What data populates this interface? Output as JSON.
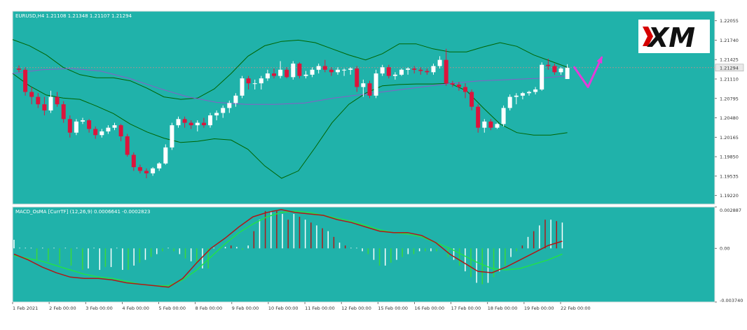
{
  "main_panel": {
    "label": "EURUSD,H4  1.21108 1.21348 1.21107 1.21294",
    "current_price": "1.21294",
    "price_ticks": [
      "1.22055",
      "1.21740",
      "1.21425",
      "1.21110",
      "1.20795",
      "1.20480",
      "1.20165",
      "1.19850",
      "1.19535",
      "1.19220"
    ]
  },
  "macd_panel": {
    "label": "MACD_OsMA [CurrTF] (12,26,9) 0.0006641 -0.0002823",
    "ticks": [
      "0.002887",
      "0.00",
      "-0.003740"
    ]
  },
  "time_axis": {
    "labels": [
      "1 Feb 2021",
      "2 Feb 00:00",
      "3 Feb 00:00",
      "4 Feb 00:00",
      "5 Feb 00:00",
      "8 Feb 00:00",
      "9 Feb 00:00",
      "10 Feb 00:00",
      "11 Feb 00:00",
      "12 Feb 00:00",
      "15 Feb 00:00",
      "16 Feb 00:00",
      "17 Feb 00:00",
      "18 Feb 00:00",
      "19 Feb 00:00",
      "22 Feb 00:00"
    ]
  },
  "logo": {
    "text": "XM"
  },
  "colors": {
    "background": "#20b2aa",
    "bull_candle": "#ffffff",
    "bear_candle": "#dc143c",
    "bands": "#006400",
    "moving_average": "#8a5cc8",
    "macd_line": "#b01818",
    "signal_line": "#22e04a",
    "hist_red": "#b01818",
    "hist_white": "#ffffff",
    "hist_green": "#3ad83a",
    "arrow": "#e43bd8"
  },
  "chart_data": {
    "type": "candlestick",
    "symbol": "EURUSD",
    "timeframe": "H4",
    "title": "EURUSD,H4  1.21108 1.21348 1.21107 1.21294",
    "ylim": [
      1.1908,
      1.2221
    ],
    "candles": [
      {
        "o": 1.2128,
        "h": 1.2133,
        "l": 1.2122,
        "c": 1.2126
      },
      {
        "o": 1.2126,
        "h": 1.213,
        "l": 1.2084,
        "c": 1.209
      },
      {
        "o": 1.209,
        "h": 1.2098,
        "l": 1.207,
        "c": 1.2082
      },
      {
        "o": 1.2082,
        "h": 1.2088,
        "l": 1.2064,
        "c": 1.207
      },
      {
        "o": 1.207,
        "h": 1.2082,
        "l": 1.2052,
        "c": 1.206
      },
      {
        "o": 1.206,
        "h": 1.2092,
        "l": 1.2056,
        "c": 1.2082
      },
      {
        "o": 1.2082,
        "h": 1.209,
        "l": 1.2066,
        "c": 1.207
      },
      {
        "o": 1.207,
        "h": 1.2075,
        "l": 1.204,
        "c": 1.2046
      },
      {
        "o": 1.2046,
        "h": 1.2052,
        "l": 1.2016,
        "c": 1.2024
      },
      {
        "o": 1.2024,
        "h": 1.2046,
        "l": 1.202,
        "c": 1.2042
      },
      {
        "o": 1.2042,
        "h": 1.2048,
        "l": 1.2038,
        "c": 1.2044
      },
      {
        "o": 1.2044,
        "h": 1.2046,
        "l": 1.2024,
        "c": 1.203
      },
      {
        "o": 1.203,
        "h": 1.2034,
        "l": 1.2014,
        "c": 1.202
      },
      {
        "o": 1.202,
        "h": 1.203,
        "l": 1.2016,
        "c": 1.2026
      },
      {
        "o": 1.2026,
        "h": 1.2036,
        "l": 1.2022,
        "c": 1.2032
      },
      {
        "o": 1.2032,
        "h": 1.204,
        "l": 1.2028,
        "c": 1.2036
      },
      {
        "o": 1.2036,
        "h": 1.2038,
        "l": 1.201,
        "c": 1.2018
      },
      {
        "o": 1.2018,
        "h": 1.2022,
        "l": 1.1985,
        "c": 1.1988
      },
      {
        "o": 1.1988,
        "h": 1.1992,
        "l": 1.1962,
        "c": 1.1968
      },
      {
        "o": 1.1968,
        "h": 1.1972,
        "l": 1.1958,
        "c": 1.1962
      },
      {
        "o": 1.1962,
        "h": 1.1966,
        "l": 1.195,
        "c": 1.1958
      },
      {
        "o": 1.1958,
        "h": 1.1968,
        "l": 1.1954,
        "c": 1.1966
      },
      {
        "o": 1.1966,
        "h": 1.1976,
        "l": 1.1962,
        "c": 1.1974
      },
      {
        "o": 1.1974,
        "h": 1.2005,
        "l": 1.1972,
        "c": 1.2
      },
      {
        "o": 1.2,
        "h": 1.204,
        "l": 1.1996,
        "c": 1.2036
      },
      {
        "o": 1.2036,
        "h": 1.205,
        "l": 1.2032,
        "c": 1.2046
      },
      {
        "o": 1.2046,
        "h": 1.205,
        "l": 1.2032,
        "c": 1.204
      },
      {
        "o": 1.204,
        "h": 1.2044,
        "l": 1.203,
        "c": 1.2036
      },
      {
        "o": 1.2036,
        "h": 1.2044,
        "l": 1.2026,
        "c": 1.204
      },
      {
        "o": 1.204,
        "h": 1.2048,
        "l": 1.2032,
        "c": 1.2036
      },
      {
        "o": 1.2036,
        "h": 1.2056,
        "l": 1.2032,
        "c": 1.2052
      },
      {
        "o": 1.2052,
        "h": 1.206,
        "l": 1.2044,
        "c": 1.2056
      },
      {
        "o": 1.2056,
        "h": 1.2068,
        "l": 1.2048,
        "c": 1.2064
      },
      {
        "o": 1.2064,
        "h": 1.2076,
        "l": 1.2056,
        "c": 1.2072
      },
      {
        "o": 1.2072,
        "h": 1.2088,
        "l": 1.2066,
        "c": 1.2084
      },
      {
        "o": 1.2084,
        "h": 1.2116,
        "l": 1.208,
        "c": 1.2112
      },
      {
        "o": 1.2112,
        "h": 1.2116,
        "l": 1.2094,
        "c": 1.2104
      },
      {
        "o": 1.2104,
        "h": 1.211,
        "l": 1.2094,
        "c": 1.2104
      },
      {
        "o": 1.2104,
        "h": 1.2116,
        "l": 1.2094,
        "c": 1.2112
      },
      {
        "o": 1.2112,
        "h": 1.2126,
        "l": 1.2108,
        "c": 1.212
      },
      {
        "o": 1.212,
        "h": 1.2128,
        "l": 1.2112,
        "c": 1.2116
      },
      {
        "o": 1.2116,
        "h": 1.214,
        "l": 1.2112,
        "c": 1.2126
      },
      {
        "o": 1.2126,
        "h": 1.213,
        "l": 1.2112,
        "c": 1.2114
      },
      {
        "o": 1.2114,
        "h": 1.214,
        "l": 1.211,
        "c": 1.2136
      },
      {
        "o": 1.2136,
        "h": 1.2138,
        "l": 1.2112,
        "c": 1.2116
      },
      {
        "o": 1.2116,
        "h": 1.2124,
        "l": 1.2112,
        "c": 1.2118
      },
      {
        "o": 1.2118,
        "h": 1.213,
        "l": 1.2114,
        "c": 1.2126
      },
      {
        "o": 1.2126,
        "h": 1.2136,
        "l": 1.212,
        "c": 1.2132
      },
      {
        "o": 1.2132,
        "h": 1.2142,
        "l": 1.2122,
        "c": 1.2126
      },
      {
        "o": 1.2126,
        "h": 1.213,
        "l": 1.2116,
        "c": 1.2122
      },
      {
        "o": 1.2122,
        "h": 1.213,
        "l": 1.2118,
        "c": 1.2126
      },
      {
        "o": 1.2126,
        "h": 1.2128,
        "l": 1.2116,
        "c": 1.2126
      },
      {
        "o": 1.2126,
        "h": 1.213,
        "l": 1.2118,
        "c": 1.2128
      },
      {
        "o": 1.2128,
        "h": 1.2132,
        "l": 1.209,
        "c": 1.2098
      },
      {
        "o": 1.2098,
        "h": 1.211,
        "l": 1.2082,
        "c": 1.2104
      },
      {
        "o": 1.2104,
        "h": 1.2108,
        "l": 1.208,
        "c": 1.2084
      },
      {
        "o": 1.2084,
        "h": 1.2126,
        "l": 1.208,
        "c": 1.212
      },
      {
        "o": 1.212,
        "h": 1.2134,
        "l": 1.2116,
        "c": 1.213
      },
      {
        "o": 1.213,
        "h": 1.2134,
        "l": 1.2112,
        "c": 1.2116
      },
      {
        "o": 1.2116,
        "h": 1.2122,
        "l": 1.211,
        "c": 1.2118
      },
      {
        "o": 1.2118,
        "h": 1.2128,
        "l": 1.2116,
        "c": 1.2126
      },
      {
        "o": 1.2126,
        "h": 1.213,
        "l": 1.2118,
        "c": 1.2128
      },
      {
        "o": 1.2128,
        "h": 1.2132,
        "l": 1.212,
        "c": 1.2126
      },
      {
        "o": 1.2126,
        "h": 1.213,
        "l": 1.2118,
        "c": 1.2124
      },
      {
        "o": 1.2124,
        "h": 1.2128,
        "l": 1.2118,
        "c": 1.2122
      },
      {
        "o": 1.2122,
        "h": 1.2136,
        "l": 1.2118,
        "c": 1.2132
      },
      {
        "o": 1.2132,
        "h": 1.2148,
        "l": 1.2128,
        "c": 1.2142
      },
      {
        "o": 1.2142,
        "h": 1.216,
        "l": 1.21,
        "c": 1.2104
      },
      {
        "o": 1.2104,
        "h": 1.2108,
        "l": 1.2098,
        "c": 1.2102
      },
      {
        "o": 1.2102,
        "h": 1.2106,
        "l": 1.2092,
        "c": 1.2098
      },
      {
        "o": 1.2098,
        "h": 1.2104,
        "l": 1.208,
        "c": 1.209
      },
      {
        "o": 1.209,
        "h": 1.2094,
        "l": 1.206,
        "c": 1.2066
      },
      {
        "o": 1.2066,
        "h": 1.207,
        "l": 1.2024,
        "c": 1.2032
      },
      {
        "o": 1.2032,
        "h": 1.2046,
        "l": 1.2024,
        "c": 1.2042
      },
      {
        "o": 1.2042,
        "h": 1.2046,
        "l": 1.2028,
        "c": 1.2032
      },
      {
        "o": 1.2032,
        "h": 1.204,
        "l": 1.203,
        "c": 1.2038
      },
      {
        "o": 1.2038,
        "h": 1.2068,
        "l": 1.2034,
        "c": 1.2064
      },
      {
        "o": 1.2064,
        "h": 1.2086,
        "l": 1.206,
        "c": 1.2082
      },
      {
        "o": 1.2082,
        "h": 1.2088,
        "l": 1.207,
        "c": 1.2084
      },
      {
        "o": 1.2084,
        "h": 1.209,
        "l": 1.2078,
        "c": 1.2088
      },
      {
        "o": 1.2088,
        "h": 1.2092,
        "l": 1.2084,
        "c": 1.209
      },
      {
        "o": 1.209,
        "h": 1.2098,
        "l": 1.2086,
        "c": 1.2094
      },
      {
        "o": 1.2094,
        "h": 1.2138,
        "l": 1.2092,
        "c": 1.2134
      },
      {
        "o": 1.2134,
        "h": 1.2144,
        "l": 1.2126,
        "c": 1.2132
      },
      {
        "o": 1.2132,
        "h": 1.2136,
        "l": 1.2118,
        "c": 1.2122
      },
      {
        "o": 1.2122,
        "h": 1.213,
        "l": 1.2118,
        "c": 1.2128
      },
      {
        "o": 1.2111,
        "h": 1.2135,
        "l": 1.2111,
        "c": 1.2129
      }
    ],
    "bands_upper": [
      1.2175,
      1.2165,
      1.215,
      1.213,
      1.2118,
      1.2113,
      1.2113,
      1.2108,
      1.2096,
      1.2082,
      1.2078,
      1.208,
      1.2095,
      1.212,
      1.2148,
      1.2165,
      1.2172,
      1.2174,
      1.217,
      1.216,
      1.215,
      1.2142,
      1.2152,
      1.2168,
      1.2168,
      1.216,
      1.2155,
      1.2155,
      1.2163,
      1.217,
      1.2164,
      1.215,
      1.214,
      1.213
    ],
    "bands_lower": [
      1.212,
      1.21,
      1.2085,
      1.208,
      1.2078,
      1.2067,
      1.2055,
      1.2038,
      1.2025,
      1.2015,
      1.2008,
      1.201,
      1.2014,
      1.2012,
      1.1997,
      1.197,
      1.195,
      1.1962,
      1.2,
      1.204,
      1.207,
      1.2088,
      1.21,
      1.2102,
      1.2103,
      1.2103,
      1.2104,
      1.2092,
      1.2064,
      1.2038,
      1.2024,
      1.202,
      1.202,
      1.2024
    ],
    "moving_average": [
      1.212,
      1.2126,
      1.2128,
      1.2124,
      1.2112,
      1.2096,
      1.2082,
      1.2073,
      1.207,
      1.207,
      1.2072,
      1.208,
      1.2086,
      1.2092,
      1.2098,
      1.2104,
      1.2108,
      1.211,
      1.2112,
      1.2116
    ],
    "macd": {
      "ylim": [
        -0.00374,
        0.002887
      ],
      "histogram": [
        0.0006,
        0.0,
        0.0,
        0.0,
        -0.0008,
        0.0,
        -0.0009,
        0.0,
        -0.0011,
        0.0,
        -0.0012,
        0.0,
        -0.0015,
        -0.0014,
        0.0,
        -0.0015,
        -0.0013,
        -0.0013,
        0.0,
        -0.0015,
        -0.0015,
        -0.0012,
        -0.001,
        -0.0008,
        -0.0006,
        -0.0004,
        -0.0002,
        0.0,
        -0.0002,
        -0.0004,
        -0.0007,
        -0.0009,
        -0.0011,
        -0.0014,
        -0.0014,
        0.0,
        -0.0001,
        0.0001,
        0.0002,
        0.0001,
        -0.0001,
        0.0002,
        0.0012,
        0.002,
        0.0026,
        0.0026,
        0.0026,
        0.0024,
        0.002,
        0.0024,
        0.0022,
        0.002,
        0.0018,
        0.0016,
        0.0014,
        0.0012,
        0.0008,
        0.0004,
        0.0002,
        0.0,
        0.0,
        -0.0002,
        -0.0004,
        -0.0008,
        -0.0012,
        -0.0012,
        -0.001,
        -0.0008,
        -0.0006,
        -0.0004,
        -0.0004,
        -0.0002,
        -0.0002,
        -0.0002,
        -0.0002,
        0.0,
        -0.0006,
        -0.0008,
        -0.0012,
        -0.0016,
        -0.002,
        -0.0024,
        -0.0025,
        -0.0024,
        -0.002,
        -0.0016,
        -0.0012,
        -0.0006,
        -0.0002,
        0.0002,
        0.0008,
        0.0012,
        0.0016,
        0.002,
        0.002,
        0.0019,
        0.0018
      ],
      "macd_line": [
        -0.0004,
        -0.0008,
        -0.0013,
        -0.0017,
        -0.002,
        -0.0021,
        -0.0021,
        -0.0022,
        -0.0024,
        -0.0025,
        -0.0026,
        -0.0027,
        -0.0021,
        -0.001,
        0.0,
        0.0007,
        0.0015,
        0.0022,
        0.0025,
        0.0027,
        0.0025,
        0.0024,
        0.0023,
        0.002,
        0.0018,
        0.0015,
        0.0012,
        0.0011,
        0.0011,
        0.0009,
        0.0004,
        -0.0004,
        -0.001,
        -0.0016,
        -0.0017,
        -0.0013,
        -0.0008,
        -0.0003,
        0.0002,
        0.0005
      ],
      "signal_line": [
        -0.0005,
        -0.0007,
        -0.0009,
        -0.0012,
        -0.0015,
        -0.0018,
        -0.002,
        -0.0021,
        -0.0023,
        -0.0025,
        -0.0026,
        -0.0026,
        -0.0022,
        -0.0015,
        -0.0006,
        0.0003,
        0.0011,
        0.0017,
        0.0022,
        0.0025,
        0.0026,
        0.0025,
        0.0023,
        0.0021,
        0.0019,
        0.0016,
        0.0013,
        0.0011,
        0.001,
        0.0008,
        0.0004,
        0.0,
        -0.0005,
        -0.001,
        -0.0014,
        -0.0015,
        -0.0014,
        -0.0011,
        -0.0008,
        -0.0004
      ]
    },
    "annotation": {
      "shape": "arrow",
      "points": [
        [
          0,
          1.213
        ],
        [
          3,
          1.2098
        ],
        [
          6,
          1.2146
        ]
      ]
    }
  }
}
